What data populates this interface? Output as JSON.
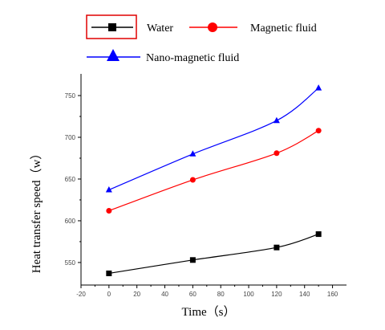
{
  "chart_data": {
    "type": "line",
    "title": "",
    "xlabel": "Time（s）",
    "ylabel": "Heat transfer speed（w）",
    "x": [
      0,
      60,
      120,
      150
    ],
    "xlim": [
      -20,
      170
    ],
    "ylim": [
      523,
      776
    ],
    "x_ticks": [
      -20,
      0,
      20,
      40,
      60,
      80,
      100,
      120,
      140,
      160
    ],
    "y_ticks": [
      550,
      600,
      650,
      700,
      750
    ],
    "grid": false,
    "legend_position": "top",
    "series": [
      {
        "name": "Water",
        "color": "#000000",
        "marker": "square",
        "values": [
          537,
          553,
          568,
          584
        ]
      },
      {
        "name": "Magnetic fluid",
        "color": "#ff0000",
        "marker": "circle",
        "values": [
          612,
          649,
          681,
          708
        ]
      },
      {
        "name": "Nano-magnetic fluid",
        "color": "#0000ff",
        "marker": "triangle",
        "values": [
          637,
          680,
          720,
          759
        ]
      }
    ]
  }
}
